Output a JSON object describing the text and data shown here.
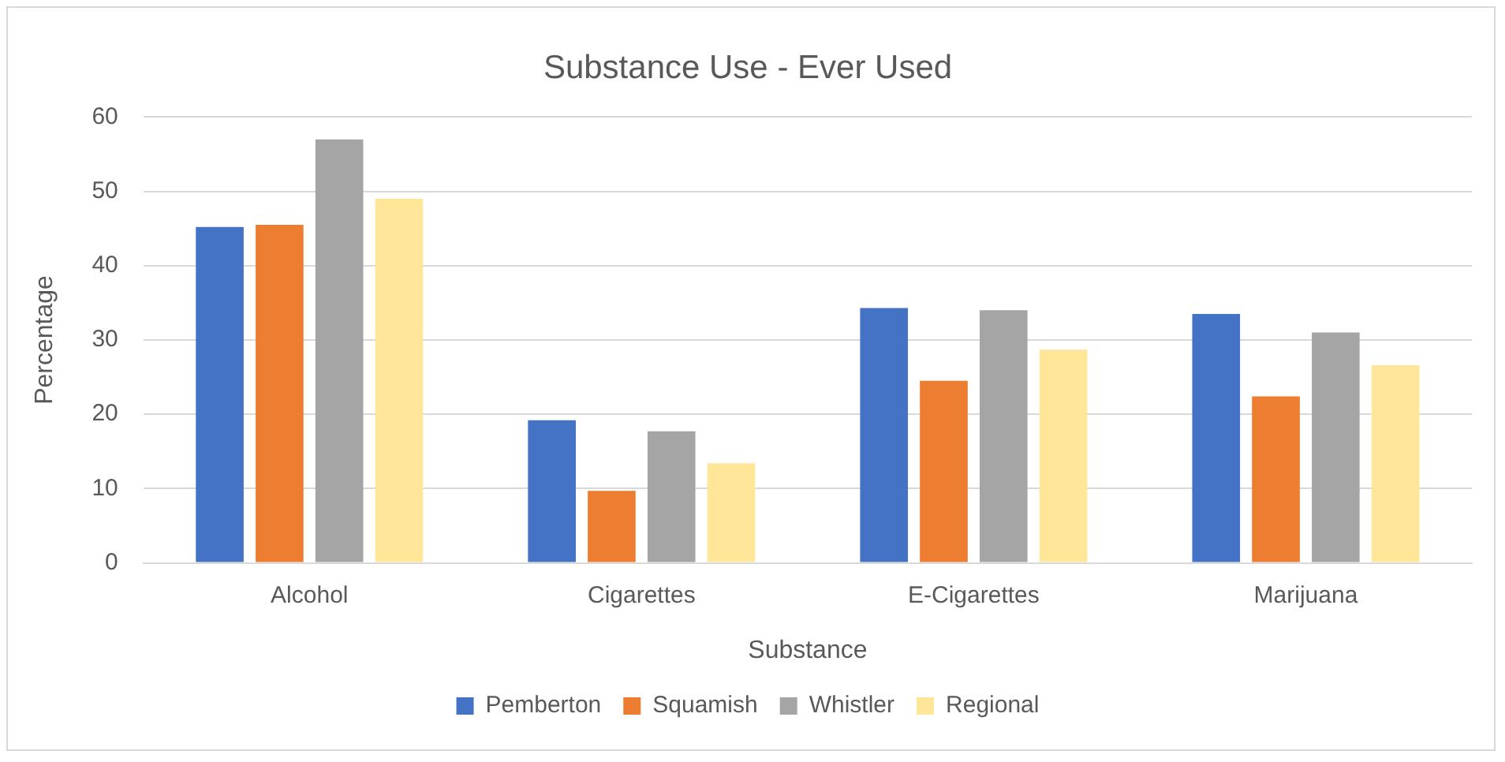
{
  "chart_data": {
    "type": "bar",
    "title": "Substance Use - Ever Used",
    "xlabel": "Substance",
    "ylabel": "Percentage",
    "categories": [
      "Alcohol",
      "Cigarettes",
      "E-Cigarettes",
      "Marijuana"
    ],
    "series": [
      {
        "name": "Pemberton",
        "color": "#4472c4",
        "values": [
          45.2,
          19.2,
          34.3,
          33.5
        ]
      },
      {
        "name": "Squamish",
        "color": "#ed7d31",
        "values": [
          45.5,
          9.7,
          24.5,
          22.4
        ]
      },
      {
        "name": "Whistler",
        "color": "#a5a5a5",
        "values": [
          57.0,
          17.7,
          34.0,
          31.0
        ]
      },
      {
        "name": "Regional",
        "color": "#ffe699",
        "values": [
          49.0,
          13.4,
          28.7,
          26.6
        ]
      }
    ],
    "ylim": [
      0,
      60
    ],
    "yticks": [
      0,
      10,
      20,
      30,
      40,
      50,
      60
    ],
    "grid": "y",
    "legend": "bottom"
  }
}
